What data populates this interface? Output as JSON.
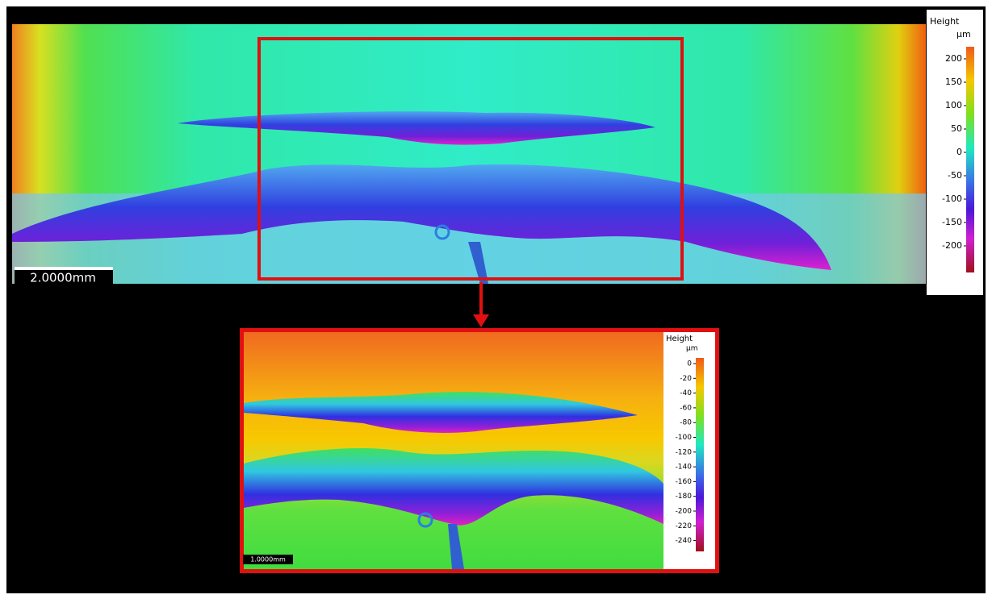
{
  "overview": {
    "legend": {
      "title": "Height",
      "unit": "µm",
      "ticks": [
        200,
        150,
        100,
        50,
        0,
        -50,
        -100,
        -150,
        -200
      ]
    },
    "scale_bar": "2.0000mm"
  },
  "detail": {
    "legend": {
      "title": "Height",
      "unit": "µm",
      "ticks": [
        0,
        -20,
        -40,
        -60,
        -80,
        -100,
        -120,
        -140,
        -160,
        -180,
        -200,
        -220,
        -240
      ]
    },
    "scale_bar": "1.0000mm"
  }
}
